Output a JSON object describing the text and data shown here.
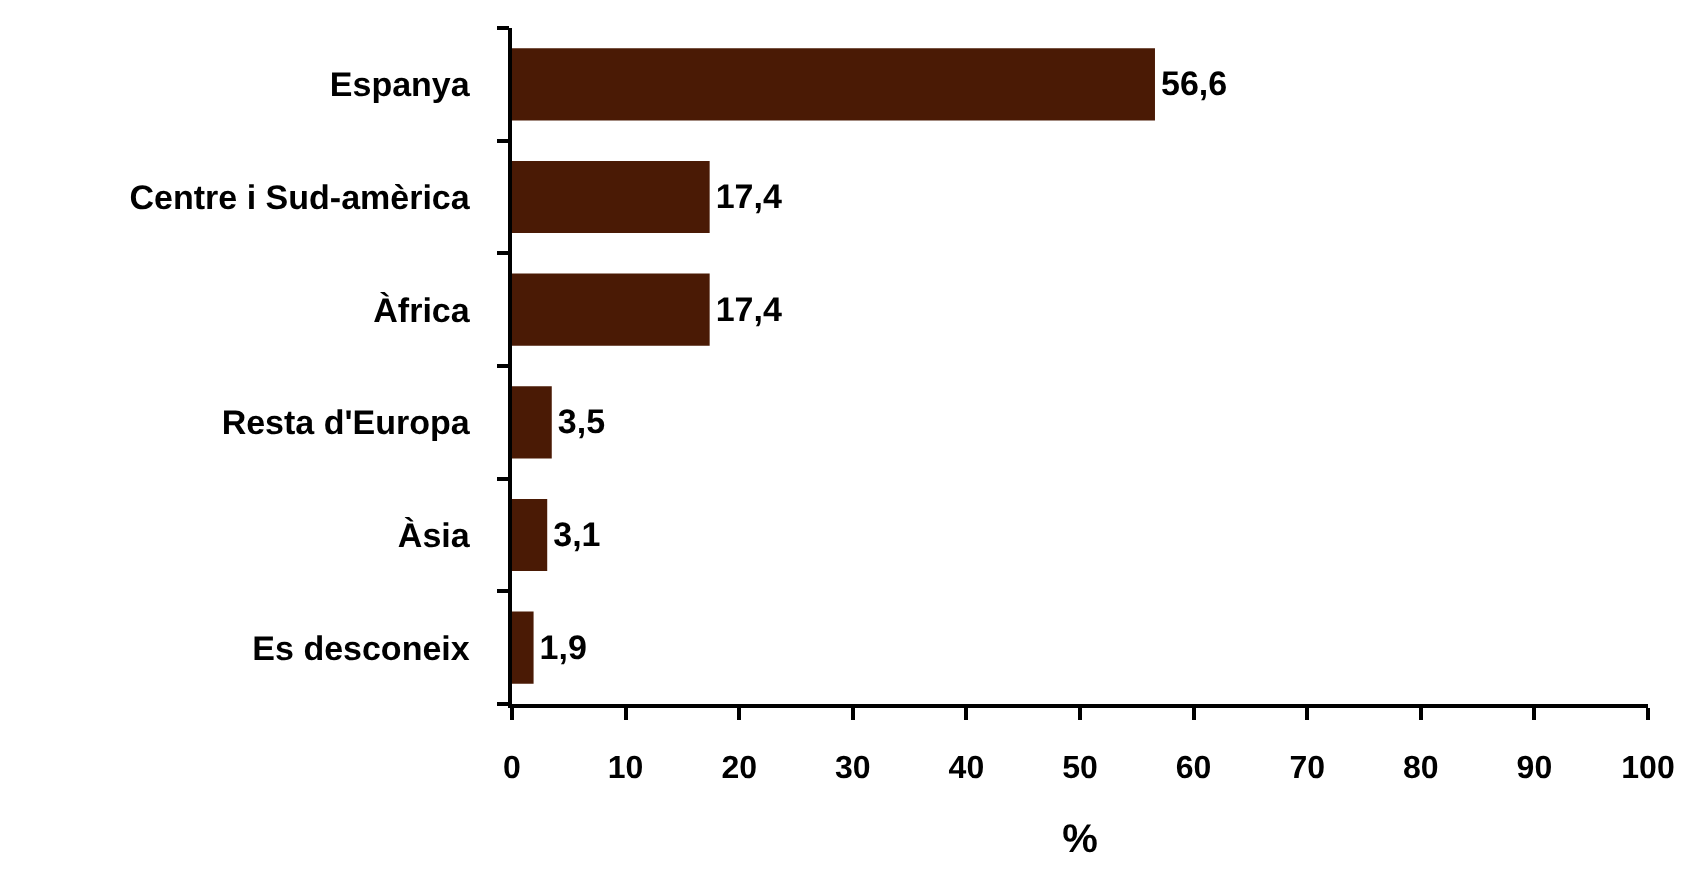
{
  "chart_data": {
    "type": "bar",
    "orientation": "horizontal",
    "categories": [
      "Espanya",
      "Centre i Sud-amèrica",
      "Àfrica",
      "Resta d'Europa",
      "Àsia",
      "Es desconeix"
    ],
    "values": [
      56.6,
      17.4,
      17.4,
      3.5,
      3.1,
      1.9
    ],
    "value_labels": [
      "56,6",
      "17,4",
      "17,4",
      "3,5",
      "3,1",
      "1,9"
    ],
    "color": "#4a1a05",
    "xlim": [
      0,
      100
    ],
    "xticks": [
      0,
      10,
      20,
      30,
      40,
      50,
      60,
      70,
      80,
      90,
      100
    ],
    "xlabel": "%"
  }
}
